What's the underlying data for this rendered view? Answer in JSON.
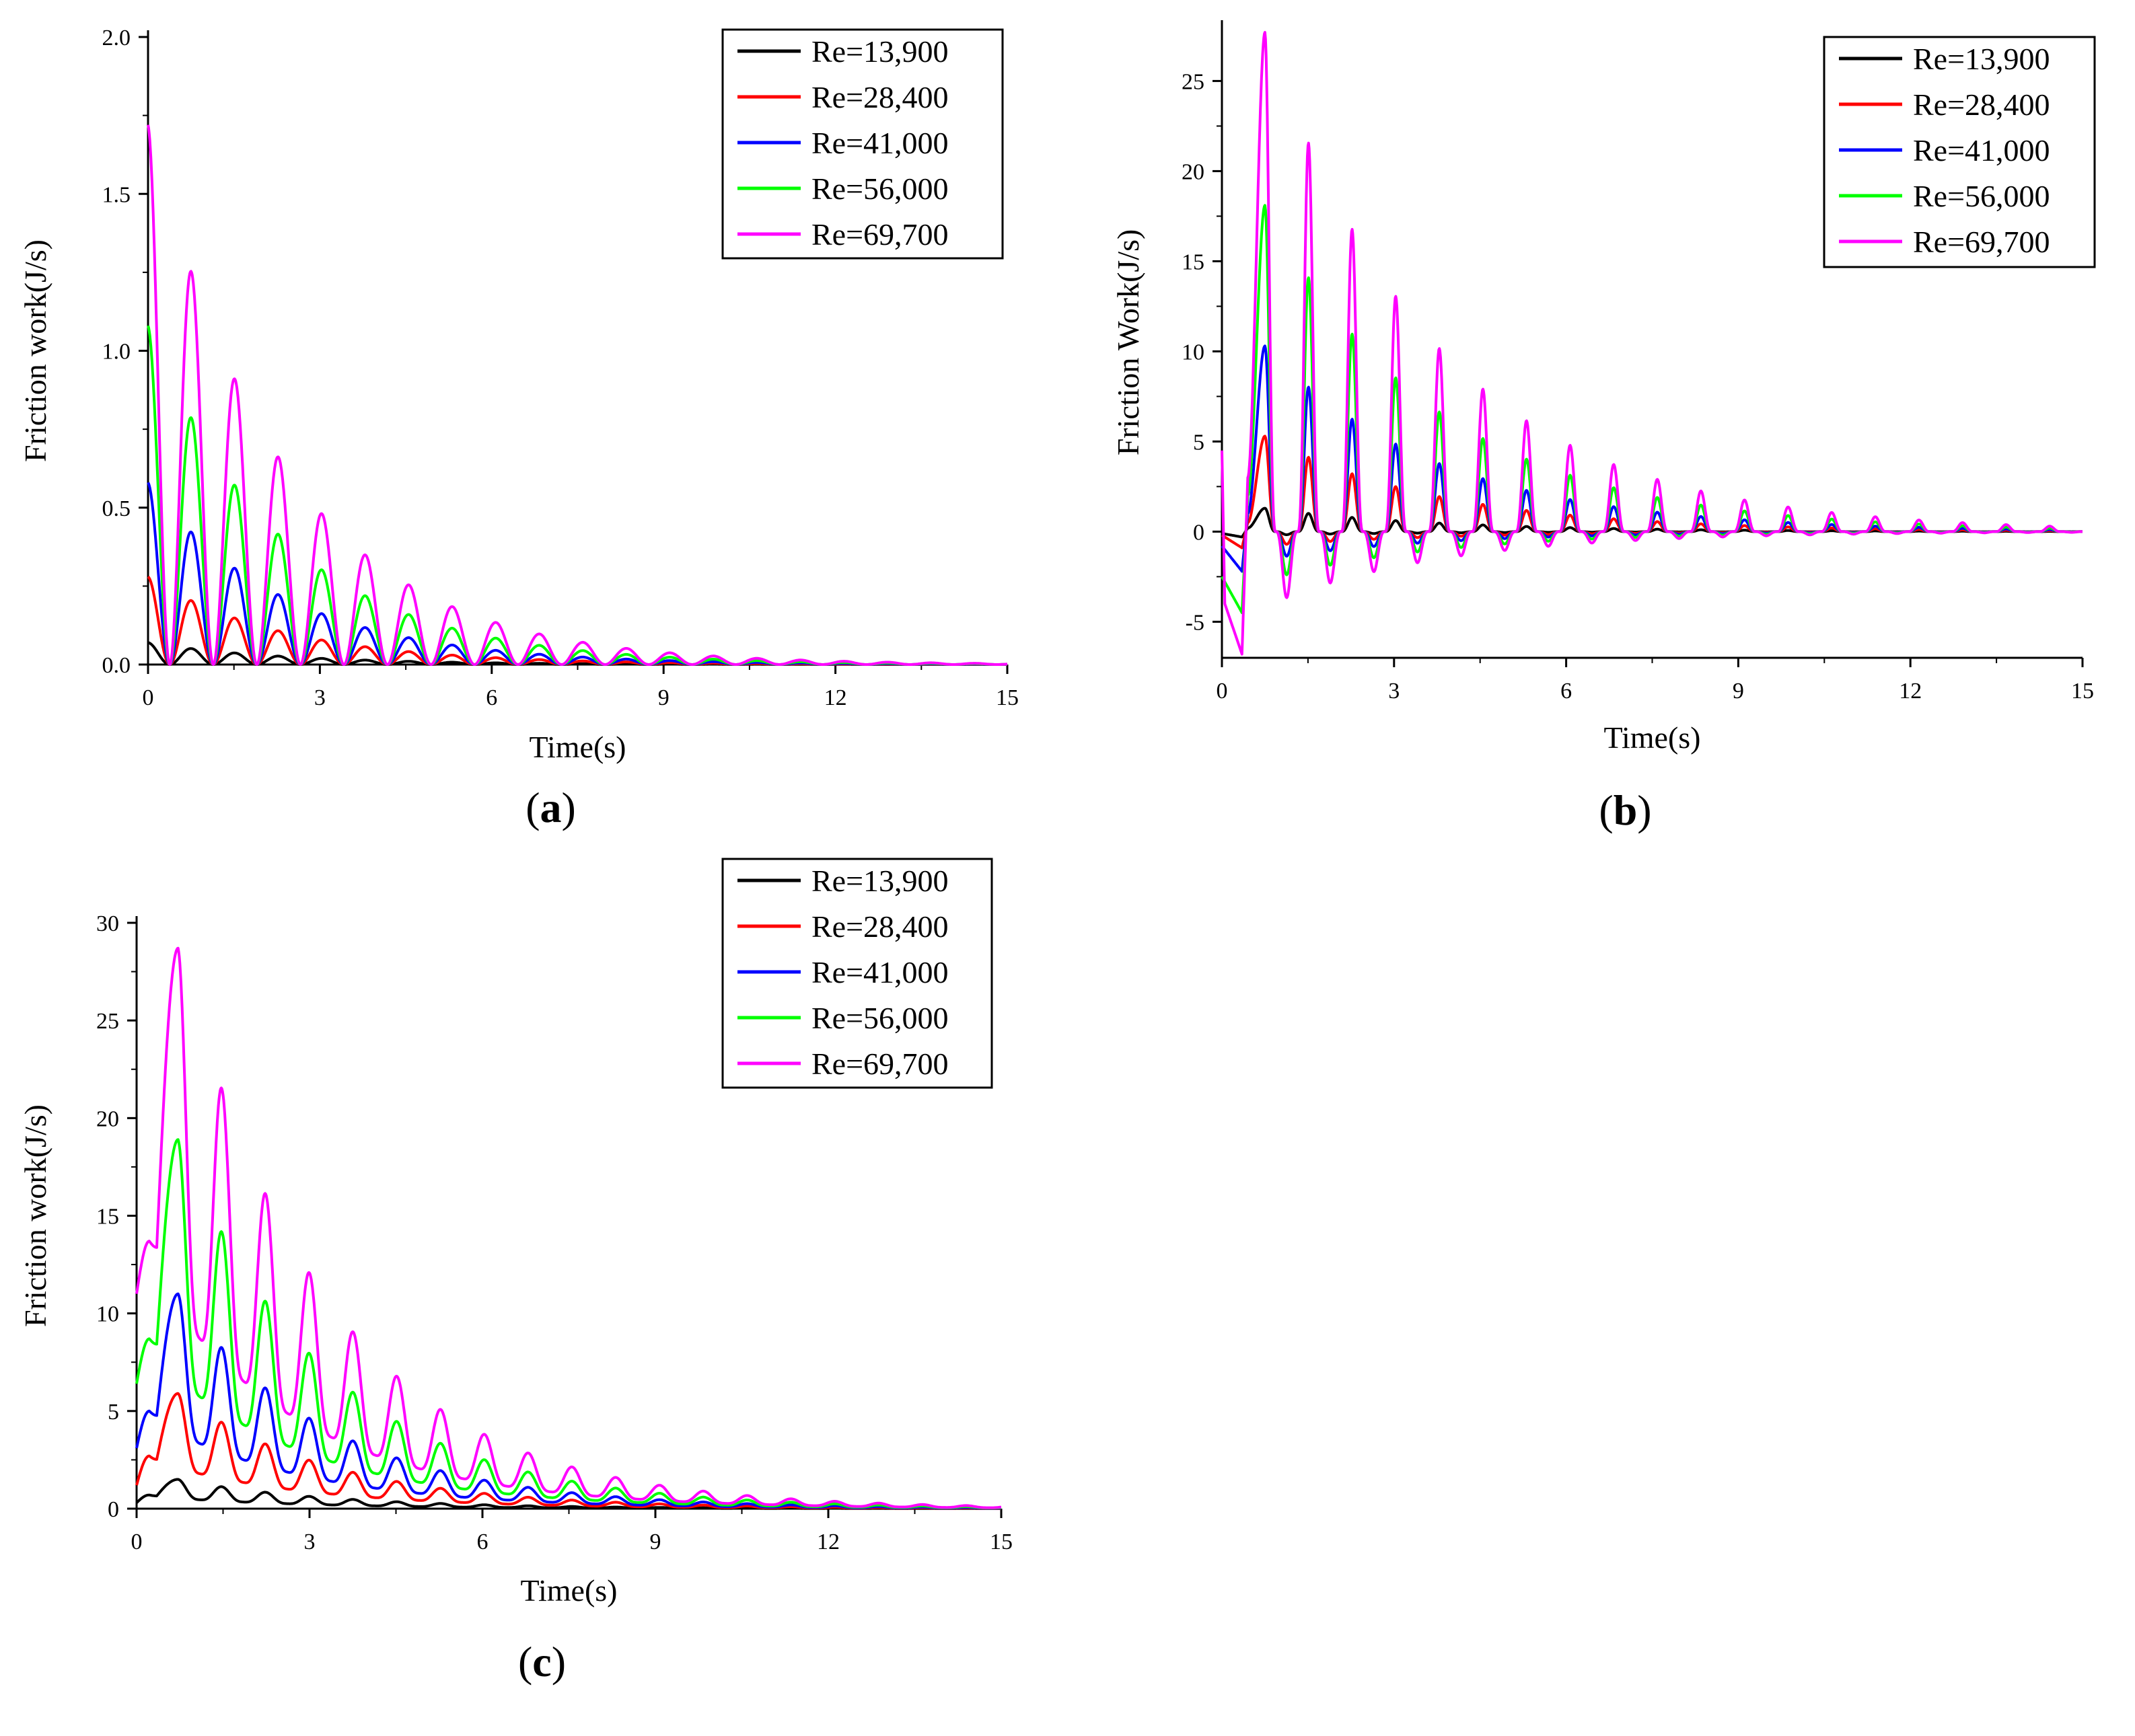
{
  "chart_data": [
    {
      "id": "a",
      "type": "line",
      "panel_label": "a",
      "xlabel": "Time(s)",
      "ylabel": "Friction work(J/s)",
      "xlim": [
        0,
        15
      ],
      "ylim": [
        0,
        2.0
      ],
      "xticks": [
        "0",
        "3",
        "6",
        "9",
        "12",
        "15"
      ],
      "yticks": [
        "0.0",
        "0.5",
        "1.0",
        "1.5",
        "2.0"
      ],
      "legend_position": "top-right",
      "series": [
        {
          "name": "Re=13,900",
          "color": "#000000",
          "model": "rect_cos",
          "params": {
            "x0": 0,
            "y0": 0.07,
            "period": 0.76,
            "decay": 0.42
          }
        },
        {
          "name": "Re=28,400",
          "color": "#ff0000",
          "model": "rect_cos",
          "params": {
            "x0": 0,
            "y0": 0.28,
            "period": 0.76,
            "decay": 0.42
          }
        },
        {
          "name": "Re=41,000",
          "color": "#0000ff",
          "model": "rect_cos",
          "params": {
            "x0": 0,
            "y0": 0.58,
            "period": 0.76,
            "decay": 0.42
          }
        },
        {
          "name": "Re=56,000",
          "color": "#00ff00",
          "model": "rect_cos",
          "params": {
            "x0": 0,
            "y0": 1.08,
            "period": 0.76,
            "decay": 0.42
          }
        },
        {
          "name": "Re=69,700",
          "color": "#ff00ff",
          "model": "rect_cos",
          "params": {
            "x0": 0,
            "y0": 1.72,
            "period": 0.76,
            "decay": 0.42
          }
        }
      ]
    },
    {
      "id": "b",
      "type": "line",
      "panel_label": "b",
      "xlabel": "Time(s)",
      "ylabel": "Friction Work(J/s)",
      "xlim": [
        0,
        15
      ],
      "ylim": [
        -7,
        28
      ],
      "xticks": [
        "0",
        "3",
        "6",
        "9",
        "12",
        "15"
      ],
      "yticks": [
        "-5",
        "0",
        "5",
        "10",
        "15",
        "20",
        "25"
      ],
      "legend_position": "top-right",
      "series": [
        {
          "name": "Re=13,900",
          "color": "#000000",
          "model": "damped_sin",
          "params": {
            "peak": 1.3,
            "start": 0.75,
            "period": 0.76,
            "decay": 0.33,
            "neg_ratio": 0.3,
            "pre": [
              [
                0,
                -0.1
              ],
              [
                0.35,
                -0.3
              ],
              [
                0.45,
                0.2
              ]
            ]
          }
        },
        {
          "name": "Re=28,400",
          "color": "#ff0000",
          "model": "damped_sin",
          "params": {
            "peak": 5.3,
            "start": 0.75,
            "period": 0.76,
            "decay": 0.33,
            "neg_ratio": 0.3,
            "pre": [
              [
                0,
                -0.2
              ],
              [
                0.35,
                -0.9
              ],
              [
                0.45,
                0.5
              ]
            ]
          }
        },
        {
          "name": "Re=41,000",
          "color": "#0000ff",
          "model": "damped_sin",
          "params": {
            "peak": 10.3,
            "start": 0.75,
            "period": 0.76,
            "decay": 0.33,
            "neg_ratio": 0.3,
            "pre": [
              [
                0,
                -0.8
              ],
              [
                0.35,
                -2.2
              ],
              [
                0.45,
                1.0
              ]
            ]
          }
        },
        {
          "name": "Re=56,000",
          "color": "#00ff00",
          "model": "damped_sin",
          "params": {
            "peak": 18.1,
            "start": 0.75,
            "period": 0.76,
            "decay": 0.33,
            "neg_ratio": 0.3,
            "pre": [
              [
                0,
                -2.5
              ],
              [
                0.35,
                -4.5
              ],
              [
                0.45,
                2.0
              ]
            ]
          }
        },
        {
          "name": "Re=69,700",
          "color": "#ff00ff",
          "model": "damped_sin",
          "params": {
            "peak": 27.7,
            "start": 0.75,
            "period": 0.76,
            "decay": 0.33,
            "neg_ratio": 0.3,
            "pre": [
              [
                0,
                4.5
              ],
              [
                0.05,
                -4.0
              ],
              [
                0.35,
                -6.8
              ],
              [
                0.45,
                3.0
              ]
            ]
          }
        }
      ]
    },
    {
      "id": "c",
      "type": "line",
      "panel_label": "c",
      "xlabel": "Time(s)",
      "ylabel": "Friction work(J/s)",
      "xlim": [
        0,
        15
      ],
      "ylim": [
        0,
        30
      ],
      "xticks": [
        "0",
        "3",
        "6",
        "9",
        "12",
        "15"
      ],
      "yticks": [
        "0",
        "5",
        "10",
        "15",
        "20",
        "25",
        "30"
      ],
      "legend_position": "top-right",
      "series": [
        {
          "name": "Re=13,900",
          "color": "#000000",
          "model": "osc_offset",
          "params": {
            "base0": 0.3,
            "bump": 0.7,
            "peak": 1.5,
            "period": 0.76,
            "decay": 0.38,
            "floor": 0.35
          }
        },
        {
          "name": "Re=28,400",
          "color": "#ff0000",
          "model": "osc_offset",
          "params": {
            "base0": 1.2,
            "bump": 2.7,
            "peak": 5.9,
            "period": 0.76,
            "decay": 0.38,
            "floor": 0.35
          }
        },
        {
          "name": "Re=41,000",
          "color": "#0000ff",
          "model": "osc_offset",
          "params": {
            "base0": 3.1,
            "bump": 5.0,
            "peak": 11.0,
            "period": 0.76,
            "decay": 0.38,
            "floor": 0.35
          }
        },
        {
          "name": "Re=56,000",
          "color": "#00ff00",
          "model": "osc_offset",
          "params": {
            "base0": 6.4,
            "bump": 8.7,
            "peak": 18.9,
            "period": 0.76,
            "decay": 0.38,
            "floor": 0.35
          }
        },
        {
          "name": "Re=69,700",
          "color": "#ff00ff",
          "model": "osc_offset",
          "params": {
            "base0": 11.0,
            "bump": 13.7,
            "peak": 28.7,
            "period": 0.76,
            "decay": 0.38,
            "floor": 0.35
          }
        }
      ]
    }
  ]
}
